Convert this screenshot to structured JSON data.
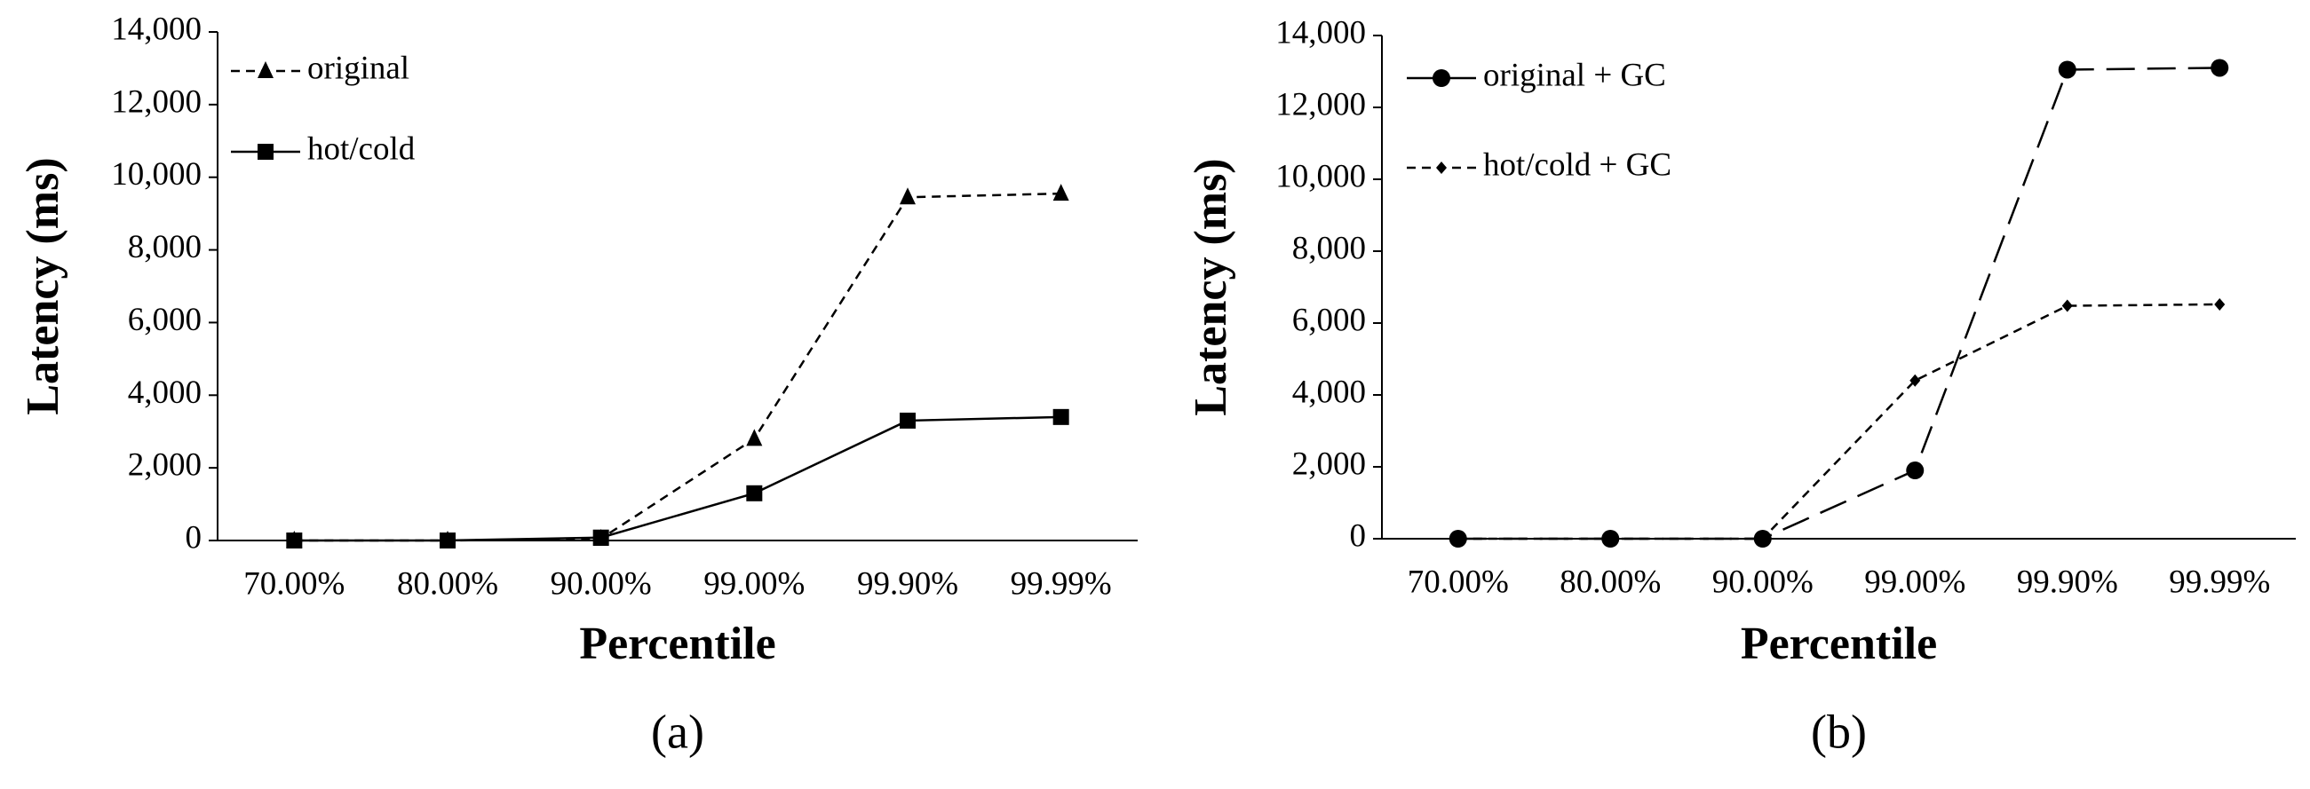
{
  "chart_data": [
    {
      "type": "line",
      "caption": "(a)",
      "x_label": "Percentile",
      "y_label": "Latency (ms)",
      "categories": [
        "70.00%",
        "80.00%",
        "90.00%",
        "99.00%",
        "99.90%",
        "99.99%"
      ],
      "series": [
        {
          "name": "original",
          "color": "#000000",
          "marker": "triangle",
          "dash": "short",
          "values": [
            0,
            0,
            50,
            2800,
            9450,
            9550
          ]
        },
        {
          "name": "hot/cold",
          "color": "#000000",
          "marker": "square",
          "dash": "solid",
          "values": [
            0,
            0,
            80,
            1300,
            3300,
            3400
          ]
        }
      ],
      "ylim": [
        0,
        14000
      ],
      "yticks": [
        0,
        {
          "value": 2000,
          "label": "2,000"
        },
        {
          "value": 4000,
          "label": "4,000"
        },
        {
          "value": 6000,
          "label": "6,000"
        },
        {
          "value": 8000,
          "label": "8,000"
        },
        {
          "value": 10000,
          "label": "10,000"
        },
        {
          "value": 12000,
          "label": "12,000"
        },
        {
          "value": 14000,
          "label": "14,000"
        }
      ],
      "grid": false,
      "legend": "top-left"
    },
    {
      "type": "line",
      "caption": "(b)",
      "x_label": "Percentile",
      "y_label": "Latency (ms)",
      "categories": [
        "70.00%",
        "80.00%",
        "90.00%",
        "99.00%",
        "99.90%",
        "99.99%"
      ],
      "series": [
        {
          "name": "original + GC",
          "color": "#000000",
          "marker": "circle",
          "dash": "long",
          "values": [
            0,
            0,
            0,
            1900,
            13050,
            13100
          ]
        },
        {
          "name": "hot/cold + GC",
          "color": "#000000",
          "marker": "diamond",
          "dash": "short",
          "values": [
            0,
            0,
            0,
            4400,
            6480,
            6520
          ]
        }
      ],
      "ylim": [
        0,
        14000
      ],
      "yticks": [
        0,
        {
          "value": 2000,
          "label": "2,000"
        },
        {
          "value": 4000,
          "label": "4,000"
        },
        {
          "value": 6000,
          "label": "6,000"
        },
        {
          "value": 8000,
          "label": "8,000"
        },
        {
          "value": 10000,
          "label": "10,000"
        },
        {
          "value": 12000,
          "label": "12,000"
        },
        {
          "value": 14000,
          "label": "14,000"
        }
      ],
      "grid": false,
      "legend": "top-left"
    }
  ]
}
